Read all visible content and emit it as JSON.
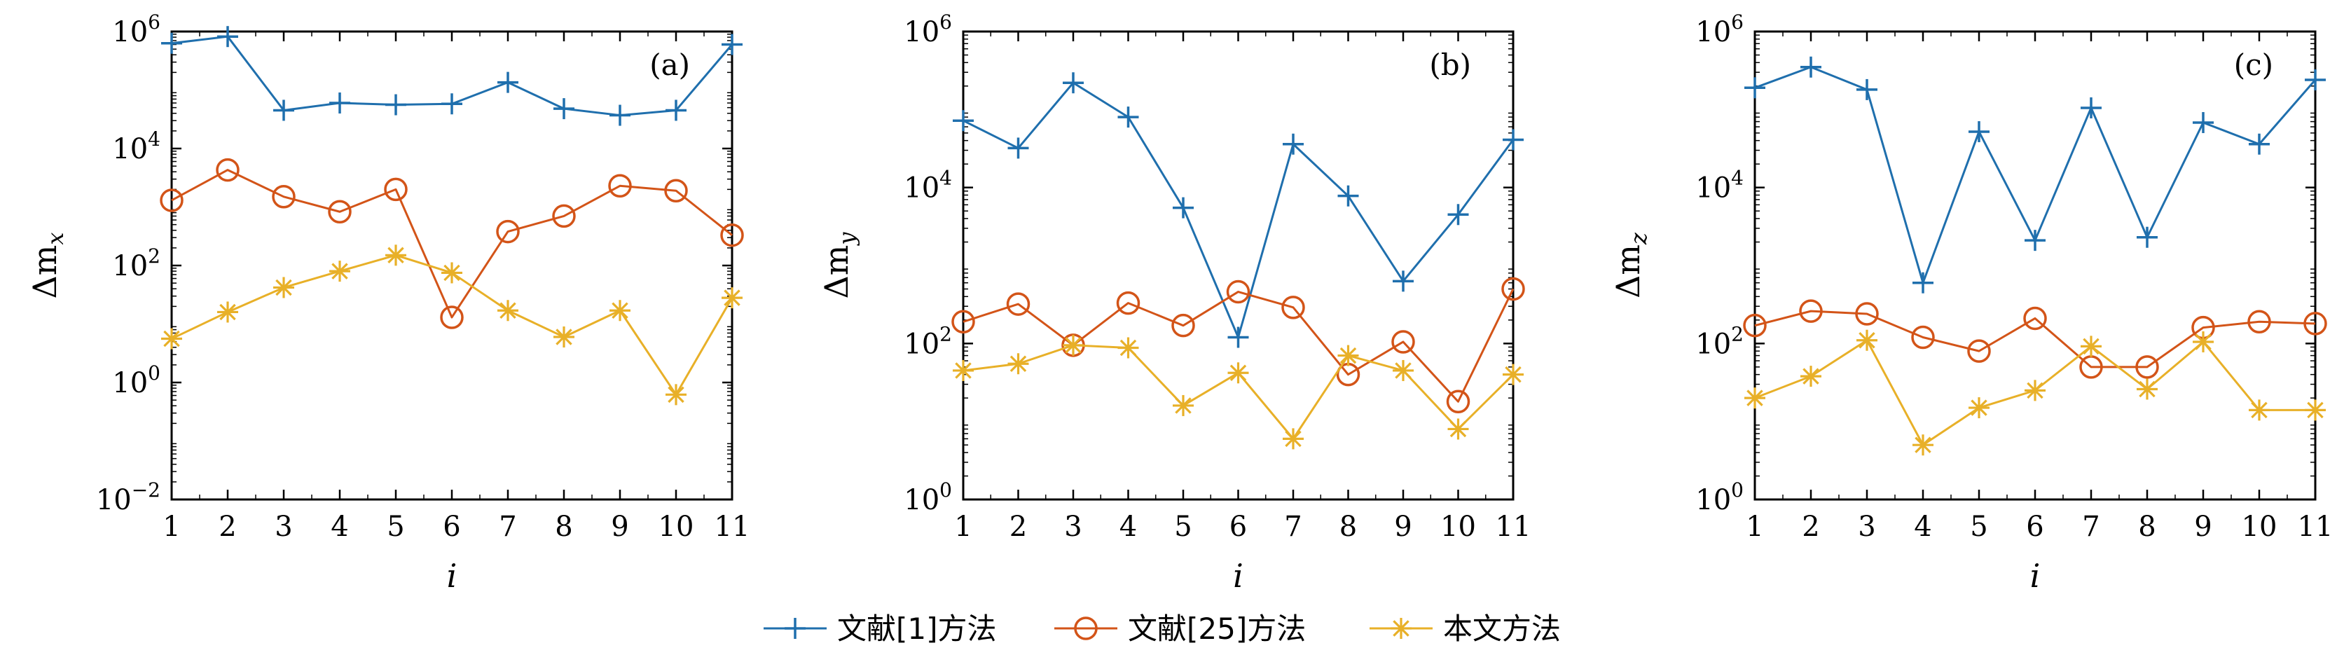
{
  "colors": {
    "series_plus": "#1f6fad",
    "series_circle": "#d35418",
    "series_star": "#e8b028"
  },
  "legend": {
    "items": [
      {
        "label": "文献[1]方法",
        "marker": "plus",
        "color": "#1f6fad"
      },
      {
        "label": "文献[25]方法",
        "marker": "circle",
        "color": "#d35418"
      },
      {
        "label": "本文方法",
        "marker": "star",
        "color": "#e8b028"
      }
    ],
    "placement": "bottom-center"
  },
  "chart_data": [
    {
      "type": "line",
      "panel_label": "(a)",
      "xlabel": "i",
      "ylabel_base": "Δm",
      "ylabel_sub": "x",
      "yscale": "log",
      "ylim": [
        0.01,
        1000000
      ],
      "yticks": [
        0.01,
        1,
        100,
        10000,
        1000000
      ],
      "ytick_labels": [
        {
          "base": "10",
          "exp": "−2"
        },
        {
          "base": "10",
          "exp": "0"
        },
        {
          "base": "10",
          "exp": "2"
        },
        {
          "base": "10",
          "exp": "4"
        },
        {
          "base": "10",
          "exp": "6"
        }
      ],
      "x": [
        1,
        2,
        3,
        4,
        5,
        6,
        7,
        8,
        9,
        10,
        11
      ],
      "xlim": [
        1,
        11
      ],
      "grid": false,
      "series": [
        {
          "name": "文献[1]方法",
          "marker": "plus",
          "values": [
            630000,
            820000,
            45000,
            60000,
            56000,
            58000,
            135000,
            48000,
            37000,
            45000,
            600000
          ]
        },
        {
          "name": "文献[25]方法",
          "marker": "circle",
          "values": [
            1300,
            4300,
            1500,
            830,
            2000,
            13,
            380,
            700,
            2300,
            1900,
            330
          ]
        },
        {
          "name": "本文方法",
          "marker": "star",
          "values": [
            5.6,
            16,
            42,
            80,
            150,
            75,
            17,
            6,
            17,
            0.62,
            28
          ]
        }
      ]
    },
    {
      "type": "line",
      "panel_label": "(b)",
      "xlabel": "i",
      "ylabel_base": "Δm",
      "ylabel_sub": "y",
      "yscale": "log",
      "ylim": [
        1,
        1000000
      ],
      "yticks": [
        1,
        100,
        10000,
        1000000
      ],
      "ytick_labels": [
        {
          "base": "10",
          "exp": "0"
        },
        {
          "base": "10",
          "exp": "2"
        },
        {
          "base": "10",
          "exp": "4"
        },
        {
          "base": "10",
          "exp": "6"
        }
      ],
      "x": [
        1,
        2,
        3,
        4,
        5,
        6,
        7,
        8,
        9,
        10,
        11
      ],
      "xlim": [
        1,
        11
      ],
      "grid": false,
      "series": [
        {
          "name": "文献[1]方法",
          "marker": "plus",
          "values": [
            72000,
            32000,
            220000,
            80000,
            5500,
            120,
            36000,
            7800,
            630,
            4500,
            41000
          ]
        },
        {
          "name": "文献[25]方法",
          "marker": "circle",
          "values": [
            190,
            320,
            95,
            330,
            170,
            460,
            290,
            40,
            105,
            18,
            500
          ]
        },
        {
          "name": "本文方法",
          "marker": "star",
          "values": [
            45,
            55,
            95,
            88,
            16,
            42,
            6,
            70,
            45,
            8,
            40
          ]
        }
      ]
    },
    {
      "type": "line",
      "panel_label": "(c)",
      "xlabel": "i",
      "ylabel_base": "Δm",
      "ylabel_sub": "z",
      "yscale": "log",
      "ylim": [
        1,
        1000000
      ],
      "yticks": [
        1,
        100,
        10000,
        1000000
      ],
      "ytick_labels": [
        {
          "base": "10",
          "exp": "0"
        },
        {
          "base": "10",
          "exp": "2"
        },
        {
          "base": "10",
          "exp": "4"
        },
        {
          "base": "10",
          "exp": "6"
        }
      ],
      "x": [
        1,
        2,
        3,
        4,
        5,
        6,
        7,
        8,
        9,
        10,
        11
      ],
      "xlim": [
        1,
        11
      ],
      "grid": false,
      "series": [
        {
          "name": "文献[1]方法",
          "marker": "plus",
          "values": [
            190000,
            350000,
            180000,
            600,
            52000,
            2100,
            105000,
            2300,
            68000,
            36000,
            240000
          ]
        },
        {
          "name": "文献[25]方法",
          "marker": "circle",
          "values": [
            170,
            260,
            240,
            120,
            80,
            210,
            50,
            50,
            160,
            190,
            180
          ]
        },
        {
          "name": "本文方法",
          "marker": "star",
          "values": [
            20,
            38,
            110,
            5,
            15,
            25,
            92,
            26,
            105,
            14,
            14
          ]
        }
      ]
    }
  ]
}
